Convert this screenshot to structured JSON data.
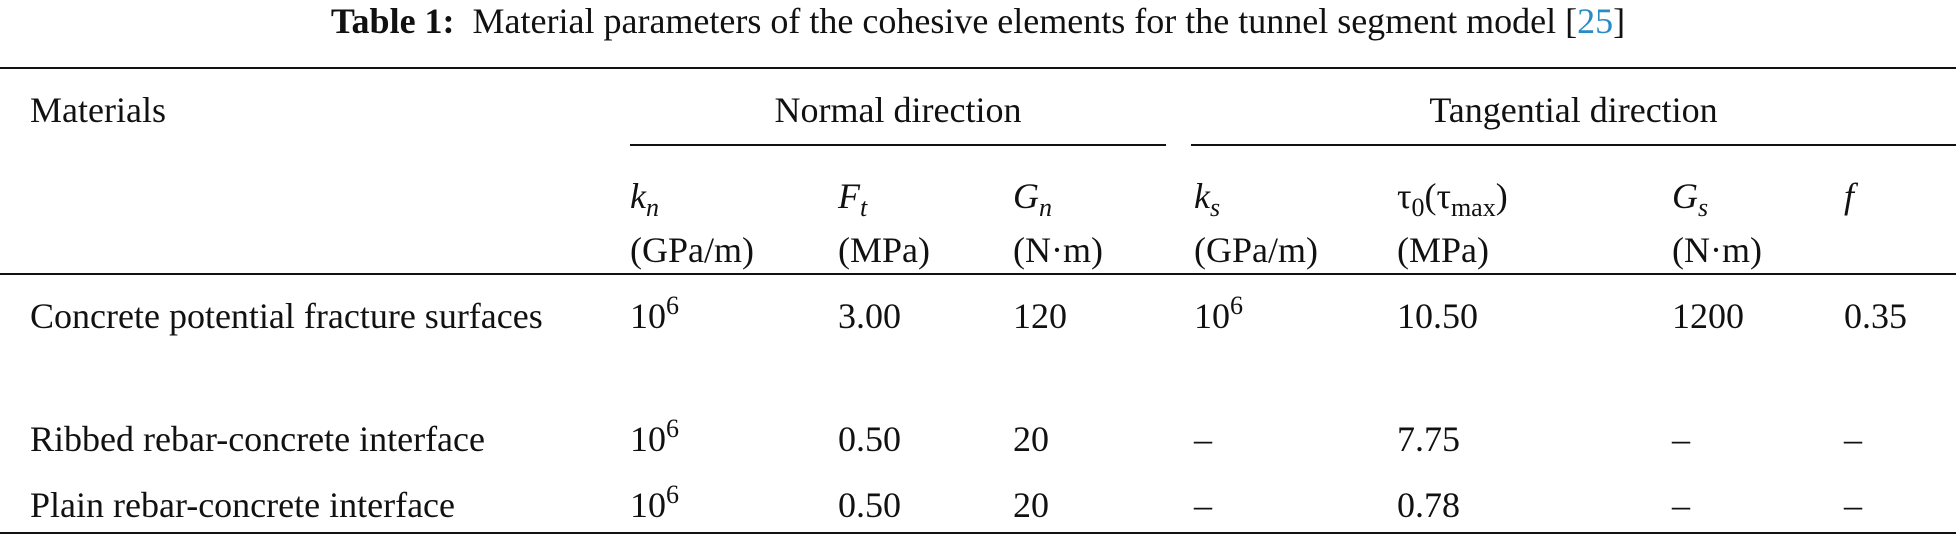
{
  "caption": {
    "label": "Table 1:",
    "text": "Material parameters of the cohesive elements for the tunnel segment model",
    "ref_open": "[",
    "ref": "25",
    "ref_close": "]"
  },
  "table": {
    "header": {
      "materials": "Materials",
      "groups": [
        "Normal direction",
        "Tangential direction"
      ],
      "columns": [
        {
          "symbol": [
            {
              "text": "k",
              "style": "italic"
            },
            {
              "text": "n",
              "style": "sub-italic"
            }
          ],
          "unit": "(GPa/m)"
        },
        {
          "symbol": [
            {
              "text": "F",
              "style": "italic"
            },
            {
              "text": "t",
              "style": "sub-italic"
            }
          ],
          "unit": "(MPa)"
        },
        {
          "symbol": [
            {
              "text": "G",
              "style": "italic"
            },
            {
              "text": "n",
              "style": "sub-italic"
            }
          ],
          "unit": "(N·m)"
        },
        {
          "symbol": [
            {
              "text": "k",
              "style": "italic"
            },
            {
              "text": "s",
              "style": "sub-italic"
            }
          ],
          "unit": "(GPa/m)"
        },
        {
          "symbol": [
            {
              "text": "τ",
              "style": "plain"
            },
            {
              "text": "0",
              "style": "sub"
            },
            {
              "text": "(τ",
              "style": "plain"
            },
            {
              "text": "max",
              "style": "sub"
            },
            {
              "text": ")",
              "style": "plain"
            }
          ],
          "unit": "(MPa)"
        },
        {
          "symbol": [
            {
              "text": "G",
              "style": "italic"
            },
            {
              "text": "s",
              "style": "sub-italic"
            }
          ],
          "unit": "(N·m)"
        },
        {
          "symbol": [
            {
              "text": "f",
              "style": "italic"
            }
          ]
        }
      ]
    },
    "rows": [
      {
        "material": "Concrete potential fracture surfaces",
        "cells": [
          {
            "base": "10",
            "exp": "6"
          },
          "3.00",
          "120",
          {
            "base": "10",
            "exp": "6"
          },
          "10.50",
          "1200",
          "0.35"
        ]
      },
      {
        "material": "Ribbed rebar-concrete interface",
        "cells": [
          {
            "base": "10",
            "exp": "6"
          },
          "0.50",
          "20",
          "–",
          "7.75",
          "–",
          "–"
        ]
      },
      {
        "material": "Plain rebar-concrete interface",
        "cells": [
          {
            "base": "10",
            "exp": "6"
          },
          "0.50",
          "20",
          "–",
          "0.78",
          "–",
          "–"
        ]
      }
    ]
  }
}
